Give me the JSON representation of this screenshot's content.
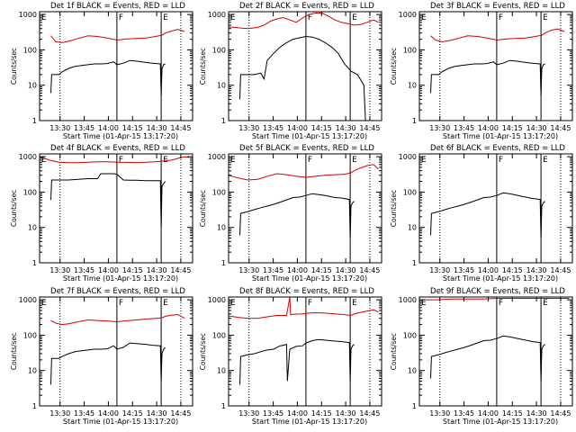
{
  "colors": {
    "events": "#000000",
    "lld": "#d40000",
    "frame": "#000000",
    "background": "#ffffff"
  },
  "chart_data": {
    "type": "line",
    "ylabel": "Counts/sec",
    "xlabel": "Start Time (01-Apr-15 13:17:20)",
    "x_unit": "minutes since 13:17:20",
    "x_ticks": [
      {
        "label": "13:30",
        "min": 12.7
      },
      {
        "label": "13:45",
        "min": 27.7
      },
      {
        "label": "14:00",
        "min": 42.7
      },
      {
        "label": "14:15",
        "min": 57.7
      },
      {
        "label": "14:30",
        "min": 72.7
      },
      {
        "label": "14:45",
        "min": 87.7
      }
    ],
    "xlim": [
      0,
      95
    ],
    "ylim": [
      1,
      1200
    ],
    "y_scale": "log",
    "y_ticks": [
      {
        "label": "1",
        "value": 1
      },
      {
        "label": "10",
        "value": 10
      },
      {
        "label": "100",
        "value": 100
      },
      {
        "label": "1000",
        "value": 1000
      }
    ],
    "markers": {
      "dotted_lines_min": [
        12.7,
        87.7
      ],
      "solid_lines_min": [
        48,
        75.5
      ],
      "flag_labels": [
        {
          "label": "E",
          "min": 0
        },
        {
          "label": "F",
          "min": 48
        },
        {
          "label": "E",
          "min": 75.5
        }
      ]
    },
    "panels": [
      {
        "title": "Det 1f BLACK = Events, RED = LLD",
        "series": [
          {
            "name": "LLD",
            "color": "red",
            "x": [
              7,
              10,
              14,
              18,
              24,
              30,
              36,
              42,
              48,
              54,
              60,
              66,
              72,
              76,
              78,
              82,
              86,
              90
            ],
            "y": [
              250,
              170,
              160,
              175,
              210,
              250,
              240,
              215,
              190,
              205,
              210,
              215,
              240,
              260,
              300,
              340,
              380,
              330
            ]
          },
          {
            "name": "Events",
            "color": "black",
            "x": [
              7,
              7.5,
              12,
              14,
              18,
              22,
              26,
              30,
              34,
              38,
              42,
              46,
              48,
              52,
              56,
              60,
              66,
              70,
              75,
              75.5,
              76,
              77,
              78
            ],
            "y": [
              6,
              20,
              20,
              24,
              30,
              34,
              36,
              38,
              40,
              40,
              41,
              46,
              38,
              42,
              50,
              48,
              44,
              42,
              40,
              5,
              30,
              38,
              40
            ]
          }
        ]
      },
      {
        "title": "Det 2f BLACK = Events, RED = LLD",
        "series": [
          {
            "name": "LLD",
            "color": "red",
            "x": [
              0,
              6,
              12,
              18,
              22,
              26,
              30,
              34,
              38,
              42,
              46,
              50,
              54,
              58,
              62,
              66,
              70,
              74,
              78,
              82,
              86,
              90,
              93
            ],
            "y": [
              450,
              420,
              400,
              430,
              500,
              650,
              750,
              820,
              700,
              600,
              800,
              1000,
              1100,
              1100,
              900,
              700,
              600,
              550,
              500,
              520,
              600,
              700,
              600
            ]
          },
          {
            "name": "Events",
            "color": "black",
            "x": [
              7,
              7.5,
              12,
              16,
              20,
              22,
              24,
              28,
              32,
              36,
              40,
              44,
              48,
              52,
              56,
              60,
              64,
              68,
              72,
              76,
              80,
              84,
              85,
              86
            ],
            "y": [
              4,
              20,
              20,
              20,
              22,
              15,
              50,
              80,
              120,
              160,
              200,
              220,
              240,
              230,
              200,
              160,
              120,
              80,
              40,
              25,
              20,
              10,
              1,
              1
            ]
          }
        ]
      },
      {
        "title": "Det 3f BLACK = Events, RED = LLD",
        "series": [
          {
            "name": "LLD",
            "color": "red",
            "x": [
              7,
              10,
              14,
              18,
              24,
              30,
              36,
              42,
              48,
              54,
              60,
              66,
              72,
              76,
              78,
              82,
              86,
              90
            ],
            "y": [
              250,
              190,
              170,
              180,
              210,
              250,
              240,
              215,
              190,
              205,
              210,
              215,
              240,
              260,
              300,
              360,
              390,
              330
            ]
          },
          {
            "name": "Events",
            "color": "black",
            "x": [
              7,
              7.5,
              12,
              14,
              18,
              22,
              26,
              30,
              34,
              38,
              42,
              46,
              48,
              52,
              56,
              60,
              66,
              70,
              75,
              75.5,
              76,
              77,
              78
            ],
            "y": [
              6,
              20,
              20,
              24,
              30,
              34,
              36,
              38,
              40,
              40,
              41,
              46,
              38,
              42,
              50,
              48,
              44,
              42,
              40,
              5,
              30,
              38,
              40
            ]
          }
        ]
      },
      {
        "title": "Det 4f BLACK = Events, RED = LLD",
        "series": [
          {
            "name": "LLD",
            "color": "red",
            "x": [
              0,
              7,
              12,
              18,
              24,
              30,
              36,
              42,
              48,
              54,
              60,
              66,
              72,
              78,
              82,
              86,
              90,
              93
            ],
            "y": [
              1000,
              780,
              700,
              680,
              680,
              700,
              720,
              720,
              700,
              690,
              680,
              700,
              720,
              760,
              800,
              900,
              1000,
              950
            ]
          },
          {
            "name": "Events",
            "color": "black",
            "x": [
              7,
              7.5,
              12,
              18,
              24,
              30,
              36,
              38,
              42,
              46,
              48,
              52,
              56,
              60,
              66,
              70,
              75,
              75.5,
              76,
              78
            ],
            "y": [
              60,
              220,
              220,
              220,
              230,
              240,
              240,
              330,
              330,
              330,
              320,
              220,
              215,
              215,
              210,
              210,
              210,
              10,
              150,
              200
            ]
          }
        ]
      },
      {
        "title": "Det 5f BLACK = Events, RED = LLD",
        "series": [
          {
            "name": "LLD",
            "color": "red",
            "x": [
              0,
              6,
              12,
              18,
              24,
              30,
              36,
              42,
              48,
              54,
              60,
              66,
              72,
              76,
              78,
              82,
              86,
              90,
              93
            ],
            "y": [
              300,
              250,
              220,
              230,
              280,
              330,
              310,
              280,
              260,
              280,
              300,
              310,
              320,
              350,
              400,
              480,
              560,
              600,
              450
            ]
          },
          {
            "name": "Events",
            "color": "black",
            "x": [
              7,
              7.5,
              12,
              16,
              20,
              24,
              28,
              32,
              36,
              40,
              44,
              48,
              52,
              56,
              60,
              66,
              70,
              75,
              75.5,
              76,
              77,
              78
            ],
            "y": [
              6,
              25,
              28,
              32,
              36,
              40,
              45,
              52,
              60,
              70,
              72,
              80,
              90,
              85,
              80,
              70,
              68,
              62,
              5,
              40,
              50,
              55
            ]
          }
        ]
      },
      {
        "title": "Det 6f BLACK = Events, RED = LLD",
        "series": [
          {
            "name": "Events",
            "color": "black",
            "x": [
              7,
              7.5,
              12,
              16,
              20,
              24,
              28,
              32,
              36,
              40,
              44,
              48,
              52,
              56,
              60,
              66,
              70,
              75,
              75.5,
              76,
              77,
              78
            ],
            "y": [
              6,
              25,
              28,
              32,
              36,
              40,
              45,
              52,
              60,
              70,
              72,
              80,
              95,
              90,
              82,
              72,
              66,
              62,
              5,
              40,
              50,
              55
            ]
          }
        ]
      },
      {
        "title": "Det 7f BLACK = Events, RED = LLD",
        "series": [
          {
            "name": "LLD",
            "color": "red",
            "x": [
              7,
              10,
              14,
              18,
              24,
              30,
              36,
              42,
              48,
              54,
              60,
              66,
              72,
              76,
              78,
              82,
              86,
              90
            ],
            "y": [
              260,
              220,
              200,
              210,
              240,
              270,
              260,
              250,
              240,
              255,
              270,
              285,
              300,
              310,
              340,
              370,
              380,
              300
            ]
          },
          {
            "name": "Events",
            "color": "black",
            "x": [
              7,
              7.5,
              12,
              14,
              18,
              22,
              26,
              30,
              34,
              38,
              42,
              46,
              48,
              52,
              56,
              60,
              66,
              70,
              75,
              75.5,
              76,
              77,
              78
            ],
            "y": [
              4,
              22,
              22,
              25,
              30,
              34,
              36,
              38,
              40,
              40,
              41,
              50,
              40,
              45,
              60,
              58,
              55,
              52,
              50,
              5,
              30,
              40,
              45
            ]
          }
        ]
      },
      {
        "title": "Det 8f BLACK = Events, RED = LLD",
        "series": [
          {
            "name": "LLD",
            "color": "red",
            "x": [
              0,
              6,
              12,
              18,
              24,
              30,
              36,
              38,
              38.5,
              40,
              46,
              50,
              54,
              60,
              66,
              72,
              76,
              78,
              82,
              86,
              90,
              93
            ],
            "y": [
              350,
              320,
              300,
              300,
              330,
              360,
              360,
              1200,
              380,
              390,
              400,
              420,
              430,
              420,
              400,
              380,
              360,
              400,
              440,
              480,
              520,
              450
            ]
          },
          {
            "name": "Events",
            "color": "black",
            "x": [
              7,
              7.5,
              12,
              16,
              20,
              24,
              28,
              32,
              34,
              36,
              36.5,
              38,
              42,
              46,
              48,
              52,
              56,
              60,
              66,
              70,
              75,
              75.5,
              76,
              77,
              78
            ],
            "y": [
              4,
              25,
              28,
              30,
              34,
              38,
              40,
              50,
              52,
              55,
              5,
              40,
              48,
              50,
              60,
              70,
              75,
              72,
              68,
              66,
              62,
              5,
              40,
              50,
              55
            ]
          }
        ]
      },
      {
        "title": "Det 9f BLACK = Events, RED = LLD",
        "series": [
          {
            "name": "LLD",
            "color": "red",
            "x": [
              0,
              10,
              20,
              30,
              40,
              48,
              56,
              64,
              72,
              80,
              88,
              93
            ],
            "y": [
              1000,
              1000,
              1050,
              1050,
              1050,
              1100,
              1100,
              1100,
              1100,
              1100,
              1100,
              1100
            ]
          },
          {
            "name": "Events",
            "color": "black",
            "x": [
              7,
              7.5,
              12,
              16,
              20,
              24,
              28,
              32,
              36,
              40,
              44,
              48,
              52,
              56,
              60,
              66,
              70,
              75,
              75.5,
              76,
              77,
              78
            ],
            "y": [
              6,
              25,
              28,
              32,
              36,
              40,
              45,
              52,
              60,
              70,
              72,
              80,
              95,
              90,
              82,
              72,
              66,
              62,
              5,
              40,
              50,
              55
            ]
          }
        ]
      }
    ]
  }
}
